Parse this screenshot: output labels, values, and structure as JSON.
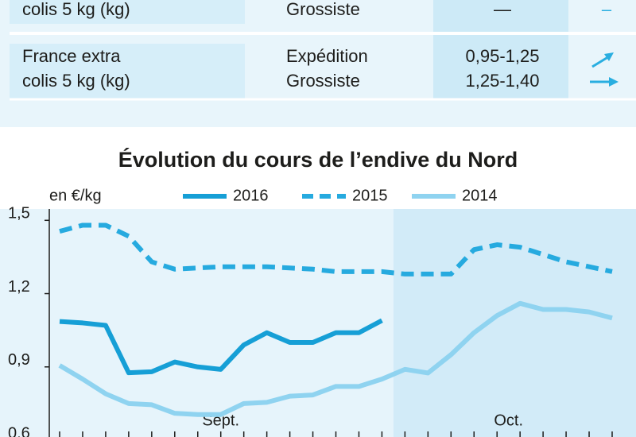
{
  "table": {
    "rows": [
      {
        "product": [
          "colis 5 kg (kg)"
        ],
        "market": [
          "Grossiste"
        ],
        "price": [
          "—"
        ],
        "trend": [
          "–"
        ]
      },
      {
        "product": [
          "France extra",
          "colis 5 kg (kg)"
        ],
        "market": [
          "Expédition",
          "Grossiste"
        ],
        "price": [
          "0,95-1,25",
          "1,25-1,40"
        ]
      }
    ]
  },
  "chart_data": {
    "type": "line",
    "title": "Évolution du cours de l’endive du Nord",
    "y_label": "en €/kg",
    "categories": [
      null,
      null,
      null,
      null,
      null,
      null,
      null,
      null,
      null,
      null,
      null,
      null,
      null,
      null,
      null,
      null,
      null,
      null,
      null,
      null,
      null,
      null,
      null,
      null,
      null
    ],
    "periods": [
      {
        "label": "Sept.",
        "from": 0,
        "to": 14
      },
      {
        "label": "Oct.",
        "from": 15,
        "to": 24
      }
    ],
    "ylim": [
      0.6,
      1.54
    ],
    "yticks": [
      {
        "value": 0.6,
        "label": "0,6"
      },
      {
        "value": 0.9,
        "label": "0,9"
      },
      {
        "value": 1.2,
        "label": "1,2"
      },
      {
        "value": 1.5,
        "label": "1,5"
      }
    ],
    "series": [
      {
        "name": "2016",
        "color": "#169fd6",
        "dashed": false,
        "values": [
          1.086,
          1.08,
          1.07,
          0.876,
          0.88,
          0.92,
          0.9,
          0.89,
          0.99,
          1.04,
          1.0,
          1.0,
          1.04,
          1.04,
          1.09,
          null,
          null,
          null,
          null,
          null,
          null,
          null,
          null,
          null,
          null
        ]
      },
      {
        "name": "2015",
        "color": "#26aadf",
        "dashed": true,
        "values": [
          1.455,
          1.48,
          1.48,
          1.435,
          1.33,
          1.3,
          1.305,
          1.31,
          1.31,
          1.31,
          1.305,
          1.3,
          1.29,
          1.29,
          1.29,
          1.28,
          1.28,
          1.28,
          1.38,
          1.4,
          1.39,
          1.36,
          1.33,
          1.31,
          1.29
        ]
      },
      {
        "name": "2014",
        "color": "#8fd3f0",
        "dashed": false,
        "values": [
          0.906,
          0.85,
          0.79,
          0.75,
          0.745,
          0.71,
          0.705,
          0.705,
          0.75,
          0.755,
          0.78,
          0.785,
          0.82,
          0.82,
          0.85,
          0.89,
          0.875,
          0.95,
          1.04,
          1.11,
          1.16,
          1.135,
          1.135,
          1.125,
          1.1
        ]
      }
    ]
  }
}
